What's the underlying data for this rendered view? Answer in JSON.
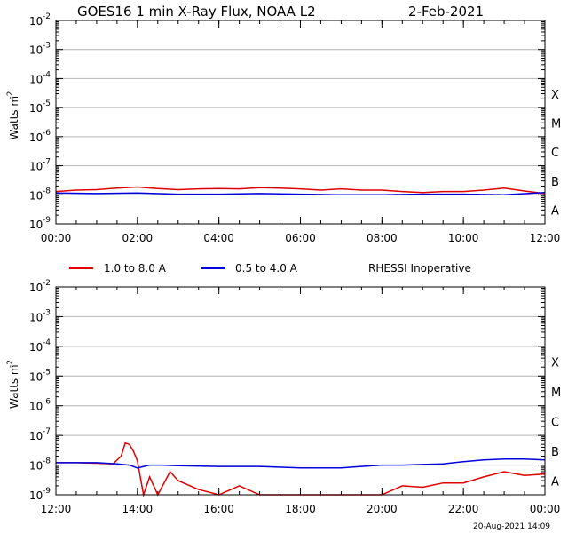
{
  "title": "GOES16 1 min X-Ray Flux, NOAA L2",
  "date": "2-Feb-2021",
  "footer": "20-Aug-2021 14:09",
  "legend": {
    "long": "1.0 to 8.0 A",
    "short": "0.5 to 4.0 A",
    "note": "RHESSI Inoperative"
  },
  "colors": {
    "long": "#e00000",
    "short": "#0000e0",
    "grid": "#b4b4b4",
    "axis": "#000000"
  },
  "chart_data": [
    {
      "type": "line",
      "ylabel": "Watts m",
      "ylabel_sup": "-2",
      "y_scale": "log",
      "ylim_exp": [
        -9,
        -2
      ],
      "y_ticks": [
        {
          "base": "10",
          "exp": "-2"
        },
        {
          "base": "10",
          "exp": "-3"
        },
        {
          "base": "10",
          "exp": "-4"
        },
        {
          "base": "10",
          "exp": "-5"
        },
        {
          "base": "10",
          "exp": "-6"
        },
        {
          "base": "10",
          "exp": "-7"
        },
        {
          "base": "10",
          "exp": "-8"
        },
        {
          "base": "10",
          "exp": "-9"
        }
      ],
      "flare_classes": [
        "X",
        "M",
        "C",
        "B",
        "A"
      ],
      "xlim_hours": [
        0,
        12
      ],
      "x_ticks": [
        "00:00",
        "02:00",
        "04:00",
        "06:00",
        "08:00",
        "10:00",
        "12:00"
      ],
      "grid": true,
      "series": [
        {
          "key": "long",
          "name": "1.0 to 8.0 A",
          "x": [
            0,
            0.5,
            1,
            1.5,
            2,
            2.5,
            3,
            3.5,
            4,
            4.5,
            5,
            5.5,
            6,
            6.5,
            7,
            7.5,
            8,
            8.5,
            9,
            9.5,
            10,
            10.5,
            11,
            11.5,
            12
          ],
          "y": [
            1.3e-08,
            1.45e-08,
            1.5e-08,
            1.7e-08,
            1.85e-08,
            1.65e-08,
            1.5e-08,
            1.6e-08,
            1.65e-08,
            1.6e-08,
            1.75e-08,
            1.7e-08,
            1.6e-08,
            1.45e-08,
            1.6e-08,
            1.45e-08,
            1.45e-08,
            1.3e-08,
            1.2e-08,
            1.3e-08,
            1.3e-08,
            1.45e-08,
            1.7e-08,
            1.35e-08,
            1.1e-08
          ]
        },
        {
          "key": "short",
          "name": "0.5 to 4.0 A",
          "x": [
            0,
            1,
            2,
            3,
            4,
            5,
            6,
            7,
            8,
            9,
            10,
            11,
            12
          ],
          "y": [
            1.15e-08,
            1.1e-08,
            1.15e-08,
            1.05e-08,
            1.05e-08,
            1.1e-08,
            1.05e-08,
            1e-08,
            1e-08,
            1.05e-08,
            1.05e-08,
            1e-08,
            1.2e-08
          ]
        }
      ]
    },
    {
      "type": "line",
      "ylabel": "Watts m",
      "ylabel_sup": "-2",
      "y_scale": "log",
      "ylim_exp": [
        -9,
        -2
      ],
      "y_ticks": [
        {
          "base": "10",
          "exp": "-2"
        },
        {
          "base": "10",
          "exp": "-3"
        },
        {
          "base": "10",
          "exp": "-4"
        },
        {
          "base": "10",
          "exp": "-5"
        },
        {
          "base": "10",
          "exp": "-6"
        },
        {
          "base": "10",
          "exp": "-7"
        },
        {
          "base": "10",
          "exp": "-8"
        },
        {
          "base": "10",
          "exp": "-9"
        }
      ],
      "flare_classes": [
        "X",
        "M",
        "C",
        "B",
        "A"
      ],
      "xlim_hours": [
        12,
        24
      ],
      "x_ticks": [
        "12:00",
        "14:00",
        "16:00",
        "18:00",
        "20:00",
        "22:00",
        "00:00"
      ],
      "grid": true,
      "series": [
        {
          "key": "long",
          "name": "1.0 to 8.0 A",
          "x": [
            12,
            12.5,
            13,
            13.4,
            13.6,
            13.7,
            13.8,
            13.9,
            14.0,
            14.15,
            14.3,
            14.5,
            14.8,
            15.0,
            15.5,
            16,
            16.5,
            17,
            17.5,
            18,
            18.5,
            19,
            19.5,
            20,
            20.5,
            21,
            21.5,
            22,
            22.5,
            23,
            23.5,
            24
          ],
          "y": [
            1.2e-08,
            1.2e-08,
            1.15e-08,
            1.1e-08,
            2e-08,
            5.5e-08,
            5e-08,
            3e-08,
            1.4e-08,
            1e-09,
            4e-09,
            1e-09,
            6e-09,
            3e-09,
            1.5e-09,
            1e-09,
            2e-09,
            1e-09,
            1e-09,
            1e-09,
            1e-09,
            1e-09,
            1e-09,
            1e-09,
            2e-09,
            1.8e-09,
            2.5e-09,
            2.5e-09,
            4e-09,
            6e-09,
            4.5e-09,
            5e-09
          ]
        },
        {
          "key": "short",
          "name": "0.5 to 4.0 A",
          "x": [
            12,
            12.5,
            13,
            13.5,
            13.8,
            14.0,
            14.3,
            14.6,
            15,
            16,
            17,
            18,
            19,
            19.5,
            20,
            20.5,
            21,
            21.5,
            22,
            22.5,
            23,
            23.5,
            24
          ],
          "y": [
            1.2e-08,
            1.2e-08,
            1.2e-08,
            1.1e-08,
            1e-08,
            8e-09,
            1e-08,
            1e-08,
            9.5e-09,
            9e-09,
            9e-09,
            8e-09,
            8e-09,
            9e-09,
            1e-08,
            1e-08,
            1.05e-08,
            1.1e-08,
            1.3e-08,
            1.5e-08,
            1.6e-08,
            1.6e-08,
            1.5e-08
          ]
        }
      ]
    }
  ]
}
